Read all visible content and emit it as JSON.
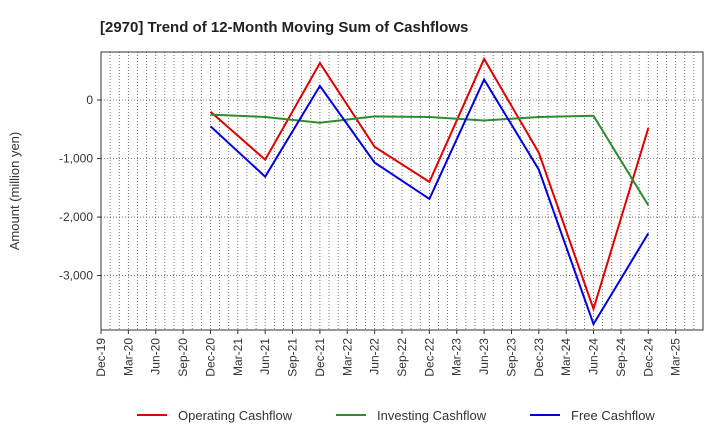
{
  "chart_data": {
    "type": "line",
    "title": "[2970]  Trend of 12-Month Moving Sum of Cashflows",
    "xlabel": "",
    "ylabel": "Amount (million yen)",
    "x_tick_labels": [
      "Dec-19",
      "Mar-20",
      "Jun-20",
      "Sep-20",
      "Dec-20",
      "Mar-21",
      "Jun-21",
      "Sep-21",
      "Dec-21",
      "Mar-22",
      "Jun-22",
      "Sep-22",
      "Dec-22",
      "Mar-23",
      "Jun-23",
      "Sep-23",
      "Dec-23",
      "Mar-24",
      "Jun-24",
      "Sep-24",
      "Dec-24",
      "Mar-25"
    ],
    "y_ticks": [
      0,
      -1000,
      -2000,
      -3000
    ],
    "y_tick_labels": [
      "0",
      "-1,000",
      "-2,000",
      "-3,000"
    ],
    "ylim": [
      -3930,
      820
    ],
    "grid": true,
    "legend_position": "bottom",
    "series": [
      {
        "name": "Operating Cashflow",
        "color": "#e00000",
        "x": [
          "Dec-20",
          "Jun-21",
          "Dec-21",
          "Jun-22",
          "Dec-22",
          "Jun-23",
          "Dec-23",
          "Jun-24",
          "Dec-24"
        ],
        "values": [
          -200,
          -1020,
          630,
          -800,
          -1400,
          700,
          -900,
          -3570,
          -480
        ]
      },
      {
        "name": "Investing Cashflow",
        "color": "#2e8b2e",
        "x": [
          "Dec-20",
          "Jun-21",
          "Dec-21",
          "Jun-22",
          "Dec-22",
          "Jun-23",
          "Dec-23",
          "Jun-24",
          "Dec-24"
        ],
        "values": [
          -250,
          -290,
          -390,
          -280,
          -290,
          -350,
          -290,
          -270,
          -1800
        ]
      },
      {
        "name": "Free Cashflow",
        "color": "#0000e0",
        "x": [
          "Dec-20",
          "Jun-21",
          "Dec-21",
          "Jun-22",
          "Dec-22",
          "Jun-23",
          "Dec-23",
          "Jun-24",
          "Dec-24"
        ],
        "values": [
          -450,
          -1310,
          240,
          -1070,
          -1690,
          350,
          -1190,
          -3830,
          -2280
        ]
      }
    ]
  }
}
